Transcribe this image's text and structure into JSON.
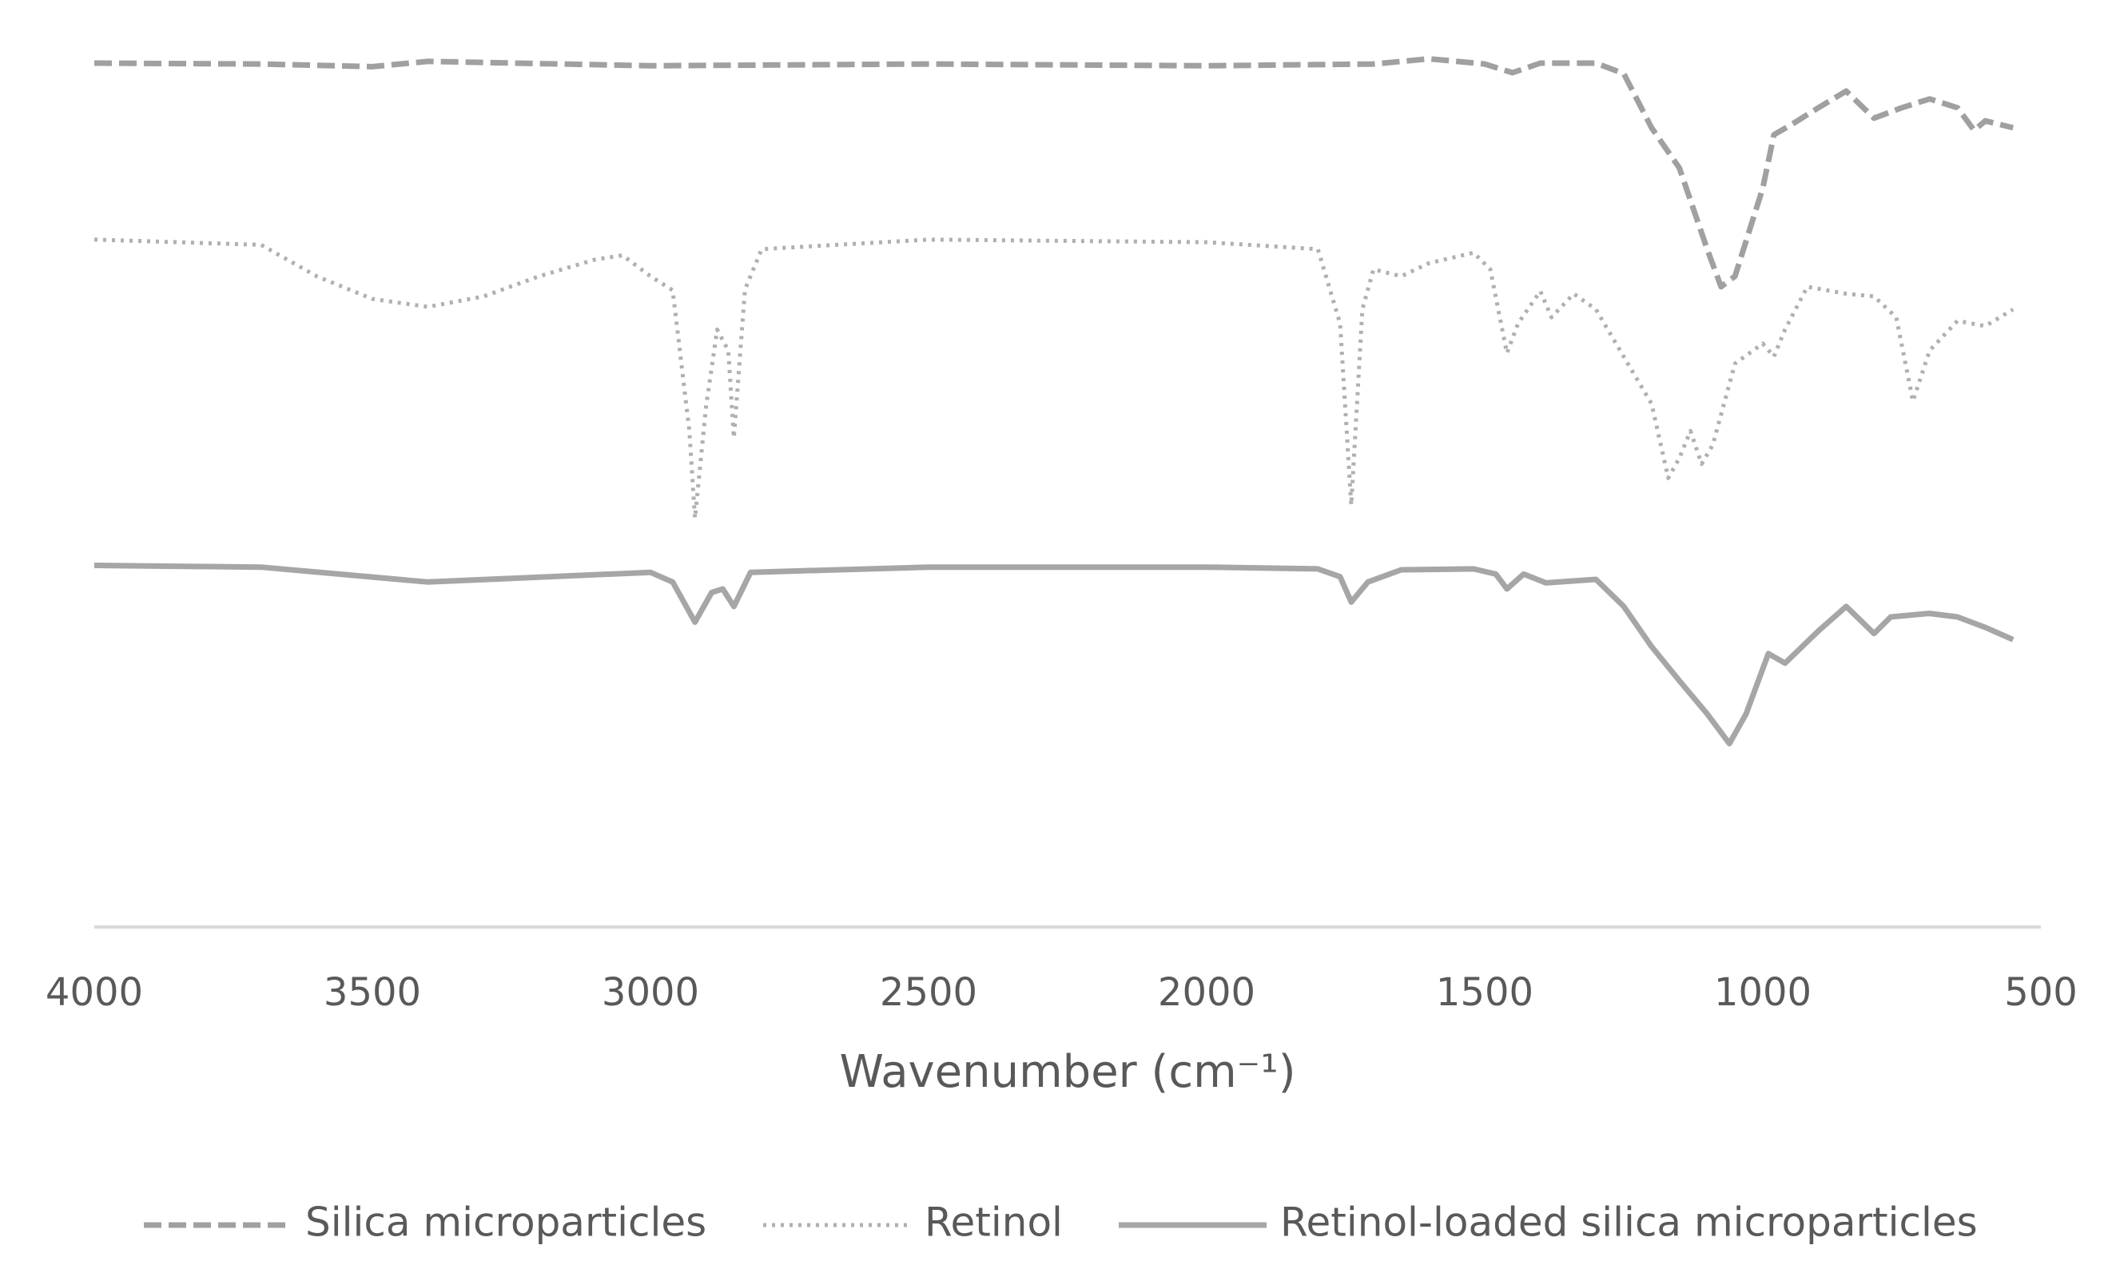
{
  "chart_data": {
    "type": "line",
    "x_label": "Wavenumber (cm⁻¹)",
    "xlim": [
      4000,
      500
    ],
    "xticks": [
      4000,
      3500,
      3000,
      2500,
      2000,
      1500,
      1000,
      500
    ],
    "ylim": [
      0,
      100
    ],
    "series": [
      {
        "name": "Silica microparticles",
        "color": "#a0a0a0",
        "line_style": "dashed",
        "x": [
          4000,
          3700,
          3500,
          3400,
          3000,
          2500,
          2000,
          1700,
          1600,
          1500,
          1450,
          1400,
          1300,
          1250,
          1200,
          1150,
          1100,
          1075,
          1050,
          1000,
          980,
          950,
          900,
          850,
          800,
          750,
          700,
          650,
          620,
          600,
          550
        ],
        "values": [
          98.9,
          98.8,
          98.5,
          99.1,
          98.6,
          98.8,
          98.6,
          98.8,
          99.4,
          98.8,
          97.8,
          98.9,
          98.9,
          97.7,
          91.5,
          86.9,
          77.6,
          73.3,
          74.5,
          84.6,
          90.7,
          91.8,
          93.8,
          95.7,
          92.6,
          93.8,
          94.8,
          93.8,
          91.2,
          92.3,
          91.5
        ]
      },
      {
        "name": "Retinol",
        "color": "#b0b0b0",
        "line_style": "dotted",
        "x": [
          4000,
          3700,
          3600,
          3500,
          3400,
          3300,
          3200,
          3100,
          3050,
          3000,
          2960,
          2930,
          2920,
          2900,
          2880,
          2860,
          2850,
          2830,
          2800,
          2500,
          2000,
          1800,
          1760,
          1740,
          1720,
          1700,
          1650,
          1600,
          1520,
          1490,
          1460,
          1440,
          1400,
          1380,
          1340,
          1300,
          1250,
          1200,
          1170,
          1150,
          1130,
          1110,
          1090,
          1050,
          1000,
          980,
          960,
          920,
          850,
          800,
          760,
          730,
          700,
          650,
          600,
          550
        ],
        "values": [
          78.7,
          78.1,
          74.5,
          71.9,
          71.0,
          72.2,
          74.5,
          76.4,
          76.9,
          74.5,
          72.9,
          56.8,
          46.8,
          59.6,
          68.4,
          66.0,
          56.0,
          73.0,
          77.6,
          78.7,
          78.4,
          77.6,
          69.1,
          48.3,
          70.7,
          75.3,
          74.5,
          76.0,
          77.2,
          75.3,
          65.7,
          69.1,
          72.8,
          69.8,
          72.5,
          70.7,
          65.3,
          59.9,
          51.4,
          53.7,
          56.8,
          53.0,
          55.2,
          64.5,
          66.8,
          65.3,
          68.4,
          73.3,
          72.5,
          72.2,
          69.8,
          60.2,
          66.0,
          69.4,
          68.8,
          70.7
        ]
      },
      {
        "name": "Retinol-loaded silica microparticles",
        "color": "#a6a6a6",
        "line_style": "solid",
        "x": [
          4000,
          3700,
          3400,
          3000,
          2960,
          2920,
          2890,
          2870,
          2850,
          2820,
          2500,
          2000,
          1800,
          1760,
          1740,
          1710,
          1650,
          1520,
          1480,
          1460,
          1430,
          1390,
          1300,
          1250,
          1200,
          1150,
          1100,
          1060,
          1030,
          990,
          960,
          900,
          850,
          800,
          770,
          700,
          650,
          600,
          550
        ],
        "values": [
          41.4,
          41.2,
          39.5,
          40.6,
          39.5,
          34.9,
          38.3,
          38.7,
          36.7,
          40.6,
          41.2,
          41.2,
          41.0,
          40.1,
          37.2,
          39.5,
          40.9,
          41.0,
          40.4,
          38.7,
          40.4,
          39.4,
          39.8,
          36.7,
          32.1,
          28.2,
          24.4,
          21.0,
          24.4,
          31.3,
          30.2,
          33.9,
          36.7,
          33.6,
          35.5,
          35.9,
          35.5,
          34.3,
          32.9
        ]
      }
    ]
  }
}
